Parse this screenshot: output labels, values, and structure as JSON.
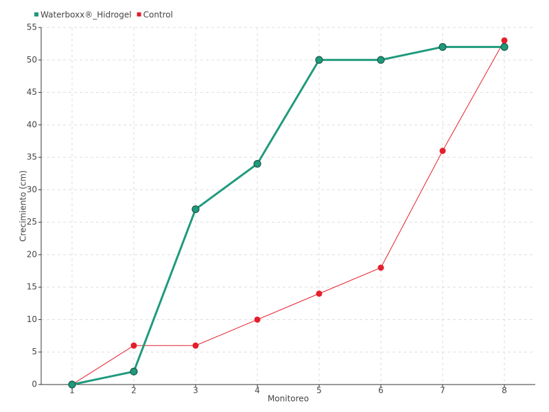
{
  "chart_data": {
    "type": "line",
    "x_label": "Monitoreo",
    "y_label": "Crecimiento (cm)",
    "categories": [
      "1",
      "2",
      "3",
      "4",
      "5",
      "6",
      "7",
      "8"
    ],
    "series": [
      {
        "name": "Waterboxx®_Hidrogel",
        "color": "#1f9a7c",
        "values": [
          0,
          2,
          27,
          34,
          50,
          50,
          52,
          52
        ]
      },
      {
        "name": "Control",
        "color": "#e51e2b",
        "values": [
          0,
          6,
          6,
          10,
          14,
          18,
          36,
          53
        ]
      }
    ],
    "ylim": [
      0,
      55
    ],
    "yticks": [
      0,
      5,
      10,
      15,
      20,
      25,
      30,
      35,
      40,
      45,
      50,
      55
    ],
    "grid": true,
    "legend": "top-left"
  }
}
